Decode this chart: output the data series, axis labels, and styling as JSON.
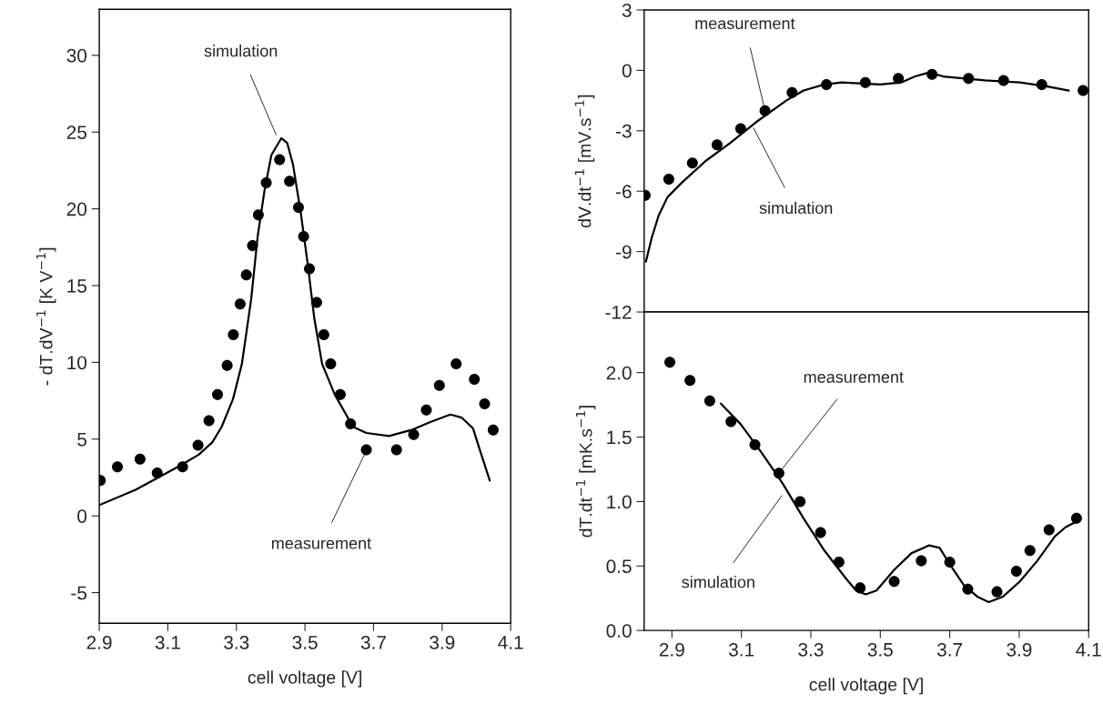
{
  "chart_data": [
    {
      "type": "line",
      "xlabel": "cell voltage [V]",
      "ylabel": "- dT.dV$^{−1}$ [K V$^{−1}$]",
      "xlim": [
        2.9,
        4.1
      ],
      "xticks": [
        2.9,
        3.1,
        3.3,
        3.5,
        3.7,
        3.9,
        4.1
      ],
      "ylim": [
        -7,
        33
      ],
      "yticks": [
        -5,
        0,
        5,
        10,
        15,
        20,
        25,
        30
      ],
      "grid": false,
      "legend": false,
      "series": [
        {
          "type": "scatter",
          "marker": "circle",
          "color": "#000000",
          "x": [
            2.903,
            2.953,
            3.019,
            3.069,
            3.143,
            3.188,
            3.22,
            3.245,
            3.273,
            3.291,
            3.311,
            3.329,
            3.347,
            3.364,
            3.387,
            3.426,
            3.455,
            3.481,
            3.496,
            3.513,
            3.534,
            3.555,
            3.575,
            3.603,
            3.633,
            3.679,
            3.767,
            3.817,
            3.854,
            3.892,
            3.941,
            3.994,
            4.024,
            4.049
          ],
          "values": [
            2.3,
            3.2,
            3.7,
            2.8,
            3.2,
            4.6,
            6.2,
            7.9,
            9.8,
            11.8,
            13.8,
            15.7,
            17.6,
            19.6,
            21.7,
            23.2,
            21.8,
            20.1,
            18.2,
            16.1,
            13.9,
            11.8,
            9.9,
            7.9,
            6.0,
            4.3,
            4.3,
            5.3,
            6.9,
            8.5,
            9.9,
            8.9,
            7.3,
            5.6
          ]
        },
        {
          "line_style": "solid",
          "color": "#000000",
          "x": [
            2.9,
            3.006,
            3.138,
            3.191,
            3.23,
            3.257,
            3.29,
            3.316,
            3.343,
            3.362,
            3.382,
            3.402,
            3.431,
            3.448,
            3.465,
            3.488,
            3.508,
            3.527,
            3.55,
            3.587,
            3.64,
            3.679,
            3.745,
            3.811,
            3.864,
            3.924,
            3.957,
            3.99,
            4.01,
            4.039
          ],
          "values": [
            0.7,
            1.7,
            3.3,
            4.0,
            4.8,
            5.8,
            7.6,
            9.9,
            14.1,
            18.2,
            21.2,
            23.5,
            24.6,
            24.3,
            22.9,
            19.7,
            16.4,
            12.9,
            9.9,
            7.9,
            5.8,
            5.4,
            5.2,
            5.6,
            6.1,
            6.6,
            6.4,
            5.7,
            4.3,
            2.3
          ]
        }
      ],
      "annotations": [
        {
          "text": "simulation",
          "x": 3.42,
          "y": 24.6
        },
        {
          "text": "measurement",
          "x": 3.68,
          "y": 4.3
        }
      ]
    },
    {
      "type": "line",
      "ylabel": "dV.dt$^{−1}$ [mV.s$^{−1}$]",
      "tick_labels": "y",
      "xlim": [
        2.82,
        4.1
      ],
      "xticks": [
        2.9,
        3.1,
        3.3,
        3.5,
        3.7,
        3.9,
        4.1
      ],
      "ylim": [
        -12,
        3
      ],
      "yticks": [
        -12,
        -9,
        -6,
        -3,
        0,
        3
      ],
      "grid": false,
      "legend": false,
      "series": [
        {
          "type": "scatter",
          "marker": "circle",
          "color": "#000000",
          "x": [
            2.823,
            2.891,
            2.959,
            3.03,
            3.098,
            3.168,
            3.246,
            3.345,
            3.457,
            3.552,
            3.649,
            3.754,
            3.855,
            3.965,
            4.084
          ],
          "values": [
            -6.2,
            -5.4,
            -4.6,
            -3.7,
            -2.9,
            -2.0,
            -1.1,
            -0.7,
            -0.6,
            -0.4,
            -0.2,
            -0.4,
            -0.5,
            -0.7,
            -1.0
          ]
        },
        {
          "line_style": "solid",
          "color": "#000000",
          "x": [
            2.825,
            2.842,
            2.862,
            2.887,
            2.927,
            2.997,
            3.068,
            3.148,
            3.229,
            3.279,
            3.339,
            3.389,
            3.5,
            3.56,
            3.6,
            3.641,
            3.681,
            3.802,
            3.902,
            3.982,
            4.043
          ],
          "values": [
            -9.5,
            -8.3,
            -7.2,
            -6.3,
            -5.6,
            -4.5,
            -3.6,
            -2.5,
            -1.5,
            -1.0,
            -0.7,
            -0.6,
            -0.7,
            -0.6,
            -0.3,
            -0.1,
            -0.3,
            -0.5,
            -0.6,
            -0.8,
            -1.0
          ]
        }
      ],
      "annotations": [
        {
          "text": "measurement",
          "x": 3.168,
          "y": -2.0
        },
        {
          "text": "simulation",
          "x": 3.13,
          "y": -2.7
        }
      ]
    },
    {
      "type": "line",
      "xlabel": "cell voltage [V]",
      "ylabel": "dT.dt$^{−1}$ [mK.s$^{−1}$]",
      "xlim": [
        2.82,
        4.1
      ],
      "xticks": [
        2.9,
        3.1,
        3.3,
        3.5,
        3.7,
        3.9,
        4.1
      ],
      "ylim": [
        0,
        2.47
      ],
      "yticks": [
        {
          "value": 0,
          "label": "0.0"
        },
        0.5,
        {
          "value": 1,
          "label": "1.0"
        },
        1.5,
        {
          "value": 2,
          "label": "2.0"
        }
      ],
      "grid": false,
      "legend": false,
      "series": [
        {
          "type": "scatter",
          "marker": "circle",
          "color": "#000000",
          "x": [
            2.894,
            2.952,
            3.009,
            3.07,
            3.139,
            3.208,
            3.269,
            3.328,
            3.381,
            3.442,
            3.54,
            3.618,
            3.7,
            3.752,
            3.836,
            3.892,
            3.931,
            3.986,
            4.065
          ],
          "values": [
            2.08,
            1.94,
            1.78,
            1.62,
            1.44,
            1.22,
            1.0,
            0.76,
            0.53,
            0.33,
            0.38,
            0.54,
            0.53,
            0.32,
            0.3,
            0.46,
            0.62,
            0.78,
            0.87
          ]
        },
        {
          "line_style": "solid",
          "color": "#000000",
          "x": [
            3.041,
            3.098,
            3.158,
            3.219,
            3.279,
            3.339,
            3.399,
            3.43,
            3.458,
            3.489,
            3.54,
            3.59,
            3.641,
            3.671,
            3.701,
            3.741,
            3.781,
            3.812,
            3.852,
            3.902,
            3.952,
            4.003,
            4.033,
            4.068
          ],
          "values": [
            1.76,
            1.6,
            1.38,
            1.14,
            0.87,
            0.62,
            0.41,
            0.31,
            0.28,
            0.31,
            0.47,
            0.6,
            0.66,
            0.64,
            0.51,
            0.35,
            0.26,
            0.22,
            0.26,
            0.38,
            0.54,
            0.73,
            0.8,
            0.85
          ]
        }
      ],
      "annotations": [
        {
          "text": "measurement",
          "x": 3.208,
          "y": 1.22
        },
        {
          "text": "simulation",
          "x": 3.223,
          "y": 1.07
        }
      ]
    }
  ]
}
